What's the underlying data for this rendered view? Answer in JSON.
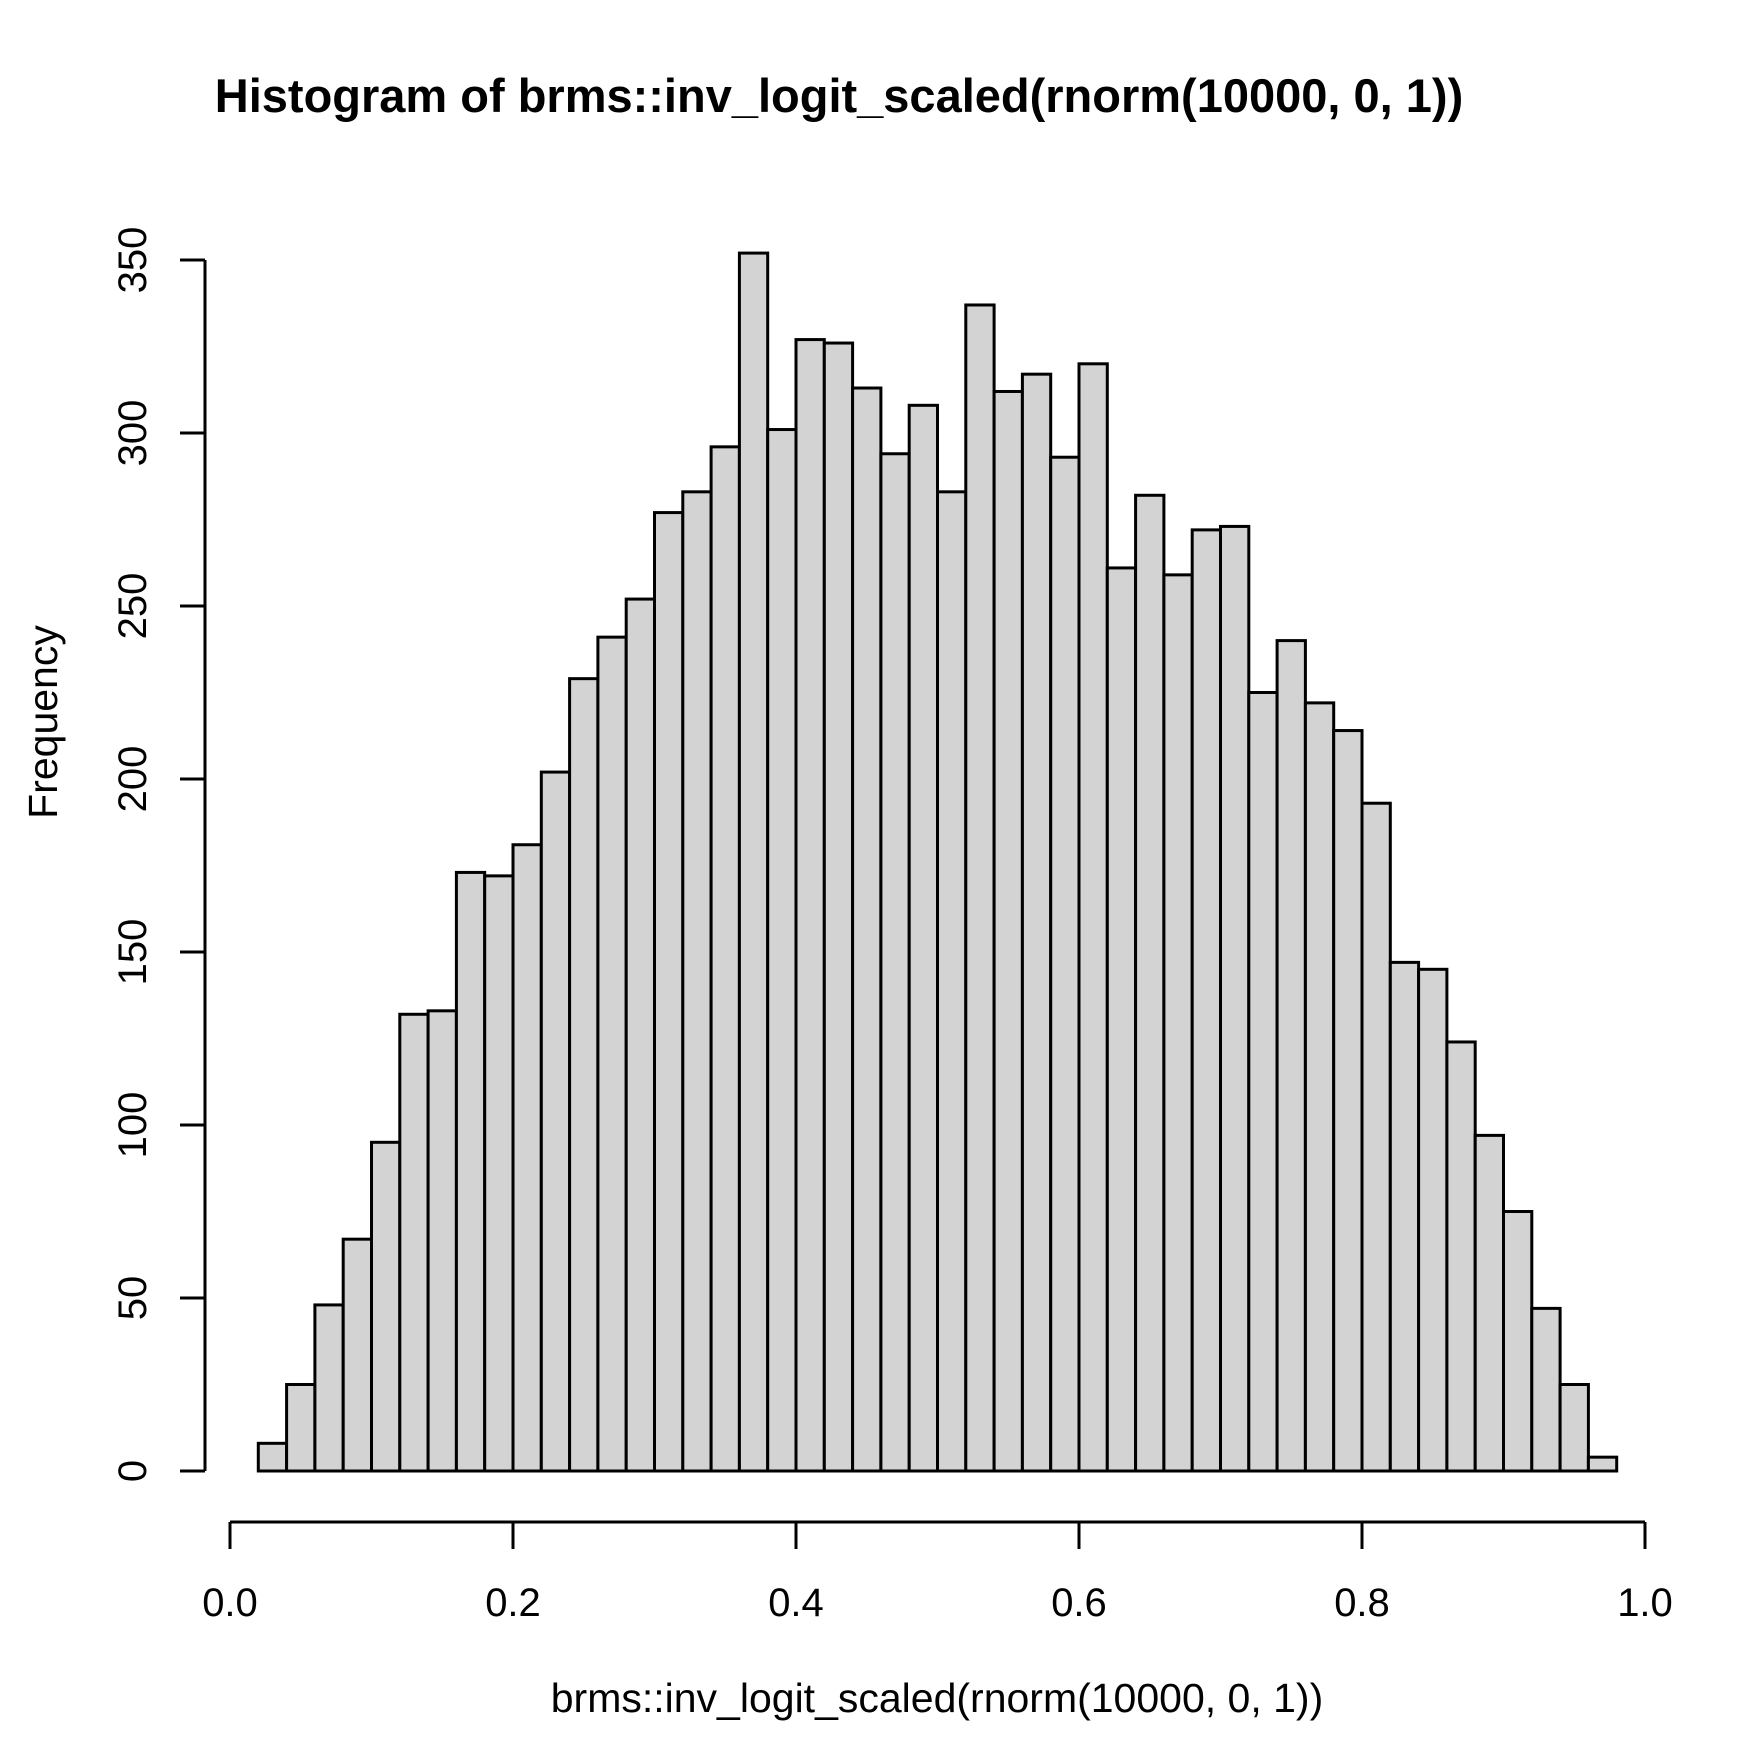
{
  "title": "Histogram of brms::inv_logit_scaled(rnorm(10000, 0, 1))",
  "chart_data": {
    "type": "bar",
    "subtype": "histogram",
    "title": "Histogram of brms::inv_logit_scaled(rnorm(10000, 0, 1))",
    "xlabel": "brms::inv_logit_scaled(rnorm(10000, 0, 1))",
    "ylabel": "Frequency",
    "bin_start": 0.02,
    "bin_width": 0.02,
    "counts": [
      8,
      25,
      48,
      67,
      95,
      132,
      133,
      173,
      172,
      181,
      202,
      229,
      241,
      252,
      277,
      283,
      296,
      352,
      301,
      327,
      326,
      313,
      294,
      308,
      283,
      337,
      312,
      317,
      293,
      320,
      261,
      282,
      259,
      272,
      273,
      225,
      240,
      222,
      214,
      193,
      147,
      145,
      124,
      97,
      75,
      47,
      25,
      4
    ],
    "xlim": [
      0.0,
      1.0
    ],
    "ylim": [
      0,
      350
    ],
    "x_tick_values": [
      0.0,
      0.2,
      0.4,
      0.6,
      0.8,
      1.0
    ],
    "x_tick_labels": [
      "0.0",
      "0.2",
      "0.4",
      "0.6",
      "0.8",
      "1.0"
    ],
    "y_tick_values": [
      0,
      50,
      100,
      150,
      200,
      250,
      300,
      350
    ],
    "y_tick_labels": [
      "0",
      "50",
      "100",
      "150",
      "200",
      "250",
      "300",
      "350"
    ],
    "grid": false,
    "legend": false,
    "bar_fill": "#d3d3d3",
    "bar_stroke": "#000000",
    "axis_color": "#000000",
    "background": "#ffffff"
  }
}
